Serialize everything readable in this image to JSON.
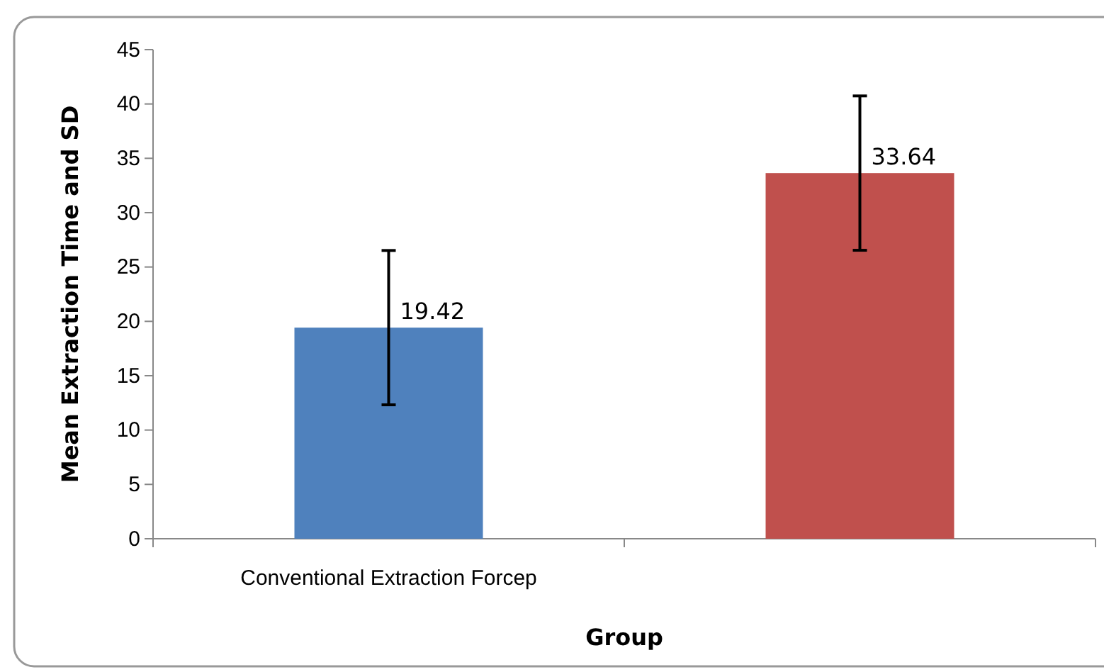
{
  "chart_data": {
    "type": "bar",
    "xlabel": "Group",
    "ylabel": "Mean Extraction  Time and SD",
    "categories": [
      "Conventional Extraction Forcep",
      null
    ],
    "values": [
      19.42,
      33.64
    ],
    "colors": [
      "#4f81bd",
      "#c0504d"
    ],
    "errors": [
      7.1,
      7.1
    ],
    "value_labels": [
      "19.42",
      "33.64"
    ],
    "ylim": [
      0,
      45
    ],
    "yticks": [
      0,
      5,
      10,
      15,
      20,
      25,
      30,
      35,
      40,
      45
    ],
    "grid": false
  }
}
